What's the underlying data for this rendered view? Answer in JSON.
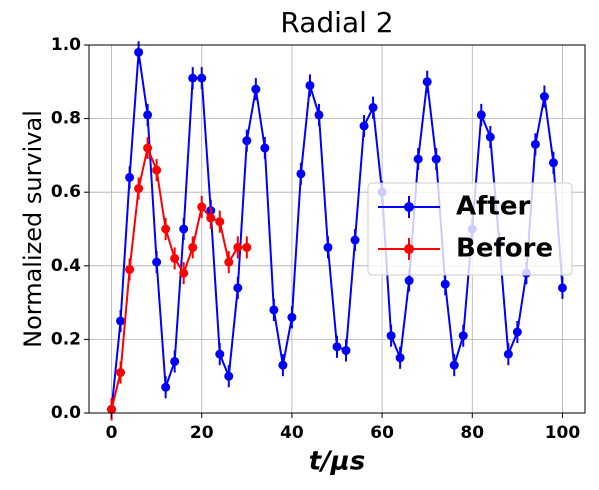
{
  "chart_data": {
    "type": "line",
    "title": "Radial 2",
    "x_label": "t/μs",
    "y_label": "Normalized survival",
    "xlim": [
      -5,
      105
    ],
    "ylim": [
      0,
      1.0
    ],
    "xticks": [
      0,
      20,
      40,
      60,
      80,
      100
    ],
    "yticks": [
      {
        "value": 0,
        "label": "0.0"
      },
      {
        "value": 0.2,
        "label": "0.2"
      },
      {
        "value": 0.4,
        "label": "0.4"
      },
      {
        "value": 0.6,
        "label": "0.6"
      },
      {
        "value": 0.8,
        "label": "0.8"
      },
      {
        "value": 1.0,
        "label": "1.0"
      }
    ],
    "grid": true,
    "legend": "center right",
    "series": [
      {
        "name": "After",
        "color": "#0000ff",
        "x": [
          0,
          2,
          4,
          6,
          8,
          10,
          12,
          14,
          16,
          18,
          20,
          22,
          24,
          26,
          28,
          30,
          32,
          34,
          36,
          38,
          40,
          42,
          44,
          46,
          48,
          50,
          52,
          54,
          56,
          58,
          60,
          62,
          64,
          66,
          68,
          70,
          72,
          74,
          76,
          78,
          80,
          82,
          84,
          86,
          88,
          90,
          92,
          94,
          96,
          98,
          100
        ],
        "values": [
          0.01,
          0.25,
          0.64,
          0.98,
          0.81,
          0.41,
          0.07,
          0.14,
          0.5,
          0.91,
          0.91,
          0.55,
          0.16,
          0.1,
          0.34,
          0.74,
          0.88,
          0.72,
          0.28,
          0.13,
          0.26,
          0.65,
          0.89,
          0.81,
          0.45,
          0.18,
          0.17,
          0.47,
          0.78,
          0.83,
          0.6,
          0.21,
          0.15,
          0.36,
          0.69,
          0.9,
          0.69,
          0.35,
          0.13,
          0.21,
          0.5,
          0.81,
          0.75,
          0.46,
          0.16,
          0.22,
          0.38,
          0.73,
          0.86,
          0.68,
          0.34
        ],
        "errors": [
          0.03,
          0.03,
          0.03,
          0.03,
          0.03,
          0.03,
          0.03,
          0.03,
          0.03,
          0.03,
          0.03,
          0.03,
          0.03,
          0.03,
          0.03,
          0.03,
          0.03,
          0.03,
          0.03,
          0.03,
          0.03,
          0.03,
          0.03,
          0.03,
          0.03,
          0.03,
          0.03,
          0.03,
          0.03,
          0.03,
          0.03,
          0.03,
          0.03,
          0.03,
          0.03,
          0.03,
          0.03,
          0.03,
          0.03,
          0.03,
          0.03,
          0.03,
          0.03,
          0.03,
          0.03,
          0.03,
          0.03,
          0.03,
          0.03,
          0.03,
          0.03
        ]
      },
      {
        "name": "Before",
        "color": "#ff0000",
        "x": [
          0,
          2,
          4,
          6,
          8,
          10,
          12,
          14,
          16,
          18,
          20,
          22,
          24,
          26,
          28,
          30
        ],
        "values": [
          0.01,
          0.11,
          0.39,
          0.61,
          0.72,
          0.66,
          0.5,
          0.42,
          0.38,
          0.45,
          0.56,
          0.53,
          0.52,
          0.41,
          0.45,
          0.45
        ],
        "errors": [
          0.03,
          0.03,
          0.03,
          0.03,
          0.03,
          0.03,
          0.03,
          0.03,
          0.03,
          0.03,
          0.03,
          0.03,
          0.03,
          0.03,
          0.03,
          0.03
        ]
      }
    ]
  }
}
